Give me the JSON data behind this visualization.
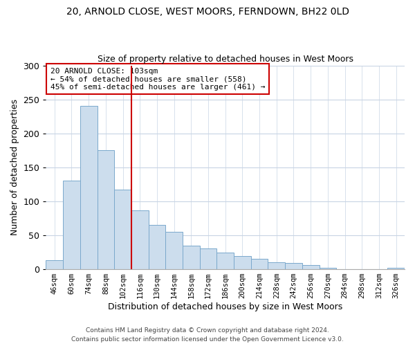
{
  "title1": "20, ARNOLD CLOSE, WEST MOORS, FERNDOWN, BH22 0LD",
  "title2": "Size of property relative to detached houses in West Moors",
  "xlabel": "Distribution of detached houses by size in West Moors",
  "ylabel": "Number of detached properties",
  "bar_labels": [
    "46sqm",
    "60sqm",
    "74sqm",
    "88sqm",
    "102sqm",
    "116sqm",
    "130sqm",
    "144sqm",
    "158sqm",
    "172sqm",
    "186sqm",
    "200sqm",
    "214sqm",
    "228sqm",
    "242sqm",
    "256sqm",
    "270sqm",
    "284sqm",
    "298sqm",
    "312sqm",
    "326sqm"
  ],
  "bar_values": [
    13,
    130,
    240,
    175,
    117,
    87,
    65,
    55,
    35,
    31,
    25,
    19,
    15,
    10,
    9,
    6,
    2,
    0,
    0,
    0,
    2
  ],
  "bar_color": "#ccdded",
  "bar_edge_color": "#7aa8cc",
  "property_line_color": "#cc0000",
  "annotation_text": "20 ARNOLD CLOSE: 103sqm\n← 54% of detached houses are smaller (558)\n45% of semi-detached houses are larger (461) →",
  "annotation_box_color": "#ffffff",
  "annotation_box_edge_color": "#cc0000",
  "ylim": [
    0,
    300
  ],
  "yticks": [
    0,
    50,
    100,
    150,
    200,
    250,
    300
  ],
  "footer1": "Contains HM Land Registry data © Crown copyright and database right 2024.",
  "footer2": "Contains public sector information licensed under the Open Government Licence v3.0.",
  "background_color": "#ffffff",
  "grid_color": "#c8d4e4"
}
